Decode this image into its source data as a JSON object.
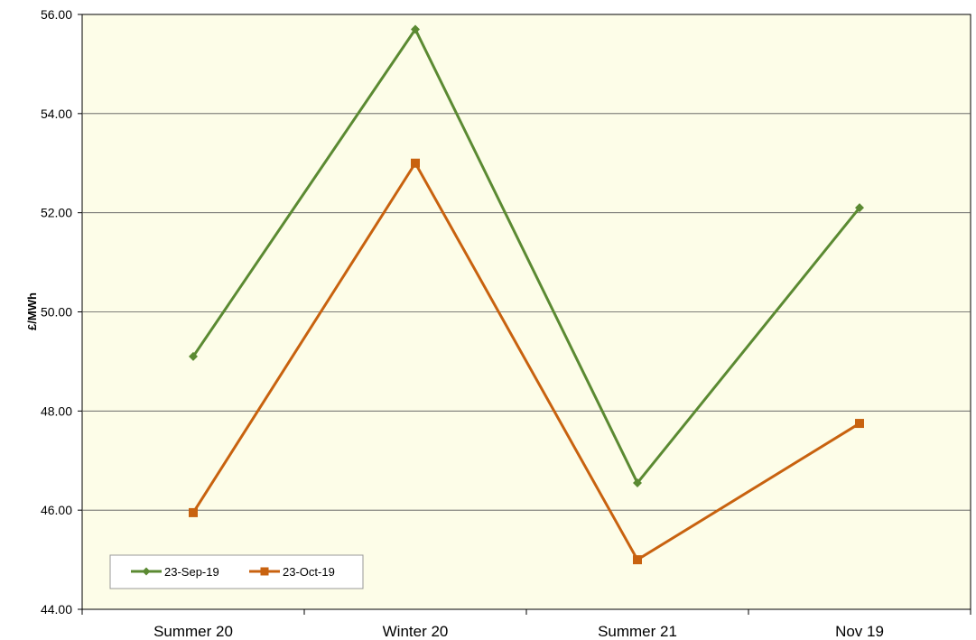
{
  "chart_data": {
    "type": "line",
    "categories": [
      "Summer 20",
      "Winter 20",
      "Summer 21",
      "Nov 19"
    ],
    "series": [
      {
        "name": "23-Sep-19",
        "values": [
          49.1,
          55.7,
          46.55,
          52.1
        ],
        "color": "#5b8a32",
        "marker": "diamond"
      },
      {
        "name": "23-Oct-19",
        "values": [
          45.95,
          53.0,
          45.0,
          47.75
        ],
        "color": "#c8620f",
        "marker": "square"
      }
    ],
    "ylabel": "£/MWh",
    "xlabel": "",
    "ylim": [
      44,
      56
    ],
    "yticks": [
      "44.00",
      "46.00",
      "48.00",
      "50.00",
      "52.00",
      "54.00",
      "56.00"
    ],
    "grid": true,
    "legend_position": "bottom-left",
    "plot_background": "#fdfde8"
  }
}
